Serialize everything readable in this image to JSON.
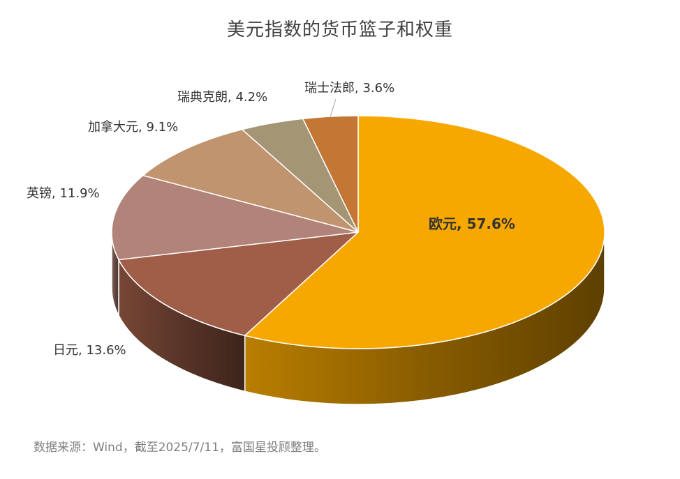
{
  "chart_data": {
    "type": "pie",
    "title": "美元指数的货币篮子和权重",
    "slices": [
      {
        "label": "欧元, 57.6%",
        "name": "欧元",
        "value": 57.6,
        "color": "#F7A800",
        "label_color": "#333333",
        "bold": true
      },
      {
        "label": "日元, 13.6%",
        "name": "日元",
        "value": 13.6,
        "color": "#A05E48",
        "label_color": "#333333",
        "bold": false
      },
      {
        "label": "英镑, 11.9%",
        "name": "英镑",
        "value": 11.9,
        "color": "#B28378",
        "label_color": "#333333",
        "bold": false
      },
      {
        "label": "加拿大元, 9.1%",
        "name": "加拿大元",
        "value": 9.1,
        "color": "#C19470",
        "label_color": "#333333",
        "bold": false
      },
      {
        "label": "瑞典克朗, 4.2%",
        "name": "瑞典克朗",
        "value": 4.2,
        "color": "#A49574",
        "label_color": "#333333",
        "bold": false
      },
      {
        "label": "瑞士法郎, 3.6%",
        "name": "瑞士法郎",
        "value": 3.6,
        "color": "#C47634",
        "label_color": "#333333",
        "bold": false
      }
    ]
  },
  "source_note": "数据来源：Wind，截至2025/7/11，富国星投顾整理。"
}
